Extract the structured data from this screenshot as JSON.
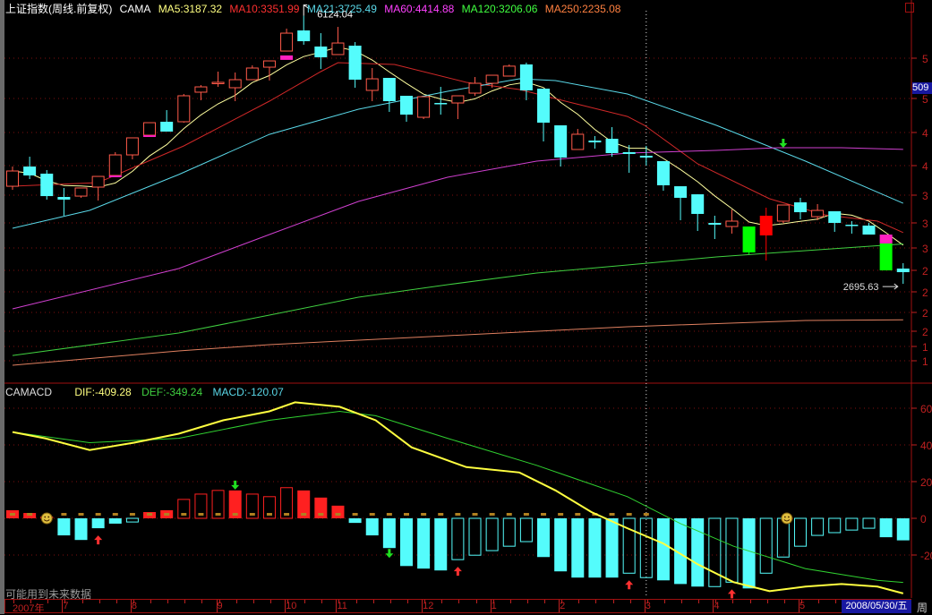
{
  "header": {
    "title": "上证指数(周线.前复权)",
    "indicator": "CAMA",
    "ma": [
      {
        "label": "MA5:3187.32",
        "color": "#ffff80"
      },
      {
        "label": "MA10:3351.99",
        "color": "#ff3030"
      },
      {
        "label": "MA21:3725.49",
        "color": "#5ad8e8"
      },
      {
        "label": "MA60:4414.88",
        "color": "#ff40ff"
      },
      {
        "label": "MA120:3206.06",
        "color": "#40ff40"
      },
      {
        "label": "MA250:2235.08",
        "color": "#ff8040"
      }
    ]
  },
  "macd_header": {
    "name": "CAMACD",
    "dif": "DIF:-409.28",
    "def": "DEF:-349.24",
    "macd": "MACD:-120.07"
  },
  "warning": "可能用到未来数据",
  "cursor_price": "509",
  "date_label": "2008/05/30/五",
  "period_label": "周",
  "colors": {
    "up": "#ff5a4a",
    "down": "#54fcfc",
    "axis": "#c02020",
    "grid": "#801010",
    "dif": "#ffff40",
    "def": "#30d030"
  },
  "chart_data": [
    {
      "type": "candlestick",
      "title": "上证指数(周线.前复权)",
      "scale": "price",
      "ylim": [
        1460,
        6326
      ],
      "annotations": [
        {
          "label": "6124.04",
          "week": 17
        },
        {
          "label": "2695.63",
          "week": 52
        }
      ],
      "right_axis_labels": [
        "5",
        "5",
        "4",
        "4",
        "3",
        "3",
        "3",
        "2",
        "2",
        "2",
        "2",
        "1",
        "1"
      ],
      "x_labels": [
        {
          "label": "2007年",
          "week": 0
        },
        {
          "label": "7",
          "week": 3
        },
        {
          "label": "8",
          "week": 7
        },
        {
          "label": "9",
          "week": 12
        },
        {
          "label": "10",
          "week": 16
        },
        {
          "label": "11",
          "week": 19
        },
        {
          "label": "12",
          "week": 24
        },
        {
          "label": "1",
          "week": 28
        },
        {
          "label": "2",
          "week": 32
        },
        {
          "label": "3",
          "week": 37
        },
        {
          "label": "4",
          "week": 41
        },
        {
          "label": "5",
          "week": 46
        }
      ],
      "cursor_week": 37,
      "candles": [
        {
          "o": 3944,
          "h": 4196,
          "l": 3899,
          "c": 4139
        },
        {
          "o": 4196,
          "h": 4322,
          "l": 4036,
          "c": 4082
        },
        {
          "o": 4105,
          "h": 4151,
          "l": 3773,
          "c": 3818
        },
        {
          "o": 3807,
          "h": 3922,
          "l": 3567,
          "c": 3773
        },
        {
          "o": 3818,
          "h": 3922,
          "l": 3796,
          "c": 3922
        },
        {
          "o": 3933,
          "h": 4070,
          "l": 3761,
          "c": 4070
        },
        {
          "o": 4082,
          "h": 4380,
          "l": 4082,
          "c": 4345
        },
        {
          "o": 4345,
          "h": 4563,
          "l": 4288,
          "c": 4563
        },
        {
          "o": 4597,
          "h": 4757,
          "l": 4597,
          "c": 4757
        },
        {
          "o": 4769,
          "h": 4918,
          "l": 4643,
          "c": 4643
        },
        {
          "o": 4769,
          "h": 5124,
          "l": 4757,
          "c": 5101
        },
        {
          "o": 5147,
          "h": 5238,
          "l": 5044,
          "c": 5215
        },
        {
          "o": 5261,
          "h": 5410,
          "l": 5215,
          "c": 5273
        },
        {
          "o": 5204,
          "h": 5399,
          "l": 5032,
          "c": 5307
        },
        {
          "o": 5307,
          "h": 5490,
          "l": 5307,
          "c": 5456
        },
        {
          "o": 5467,
          "h": 5547,
          "l": 5296,
          "c": 5547
        },
        {
          "o": 5673,
          "h": 5960,
          "l": 5673,
          "c": 5902
        },
        {
          "o": 5937,
          "h": 6124.04,
          "l": 5754,
          "c": 5799
        },
        {
          "o": 5731,
          "h": 5902,
          "l": 5444,
          "c": 5593
        },
        {
          "o": 5628,
          "h": 5982,
          "l": 5628,
          "c": 5776
        },
        {
          "o": 5742,
          "h": 5788,
          "l": 5204,
          "c": 5307
        },
        {
          "o": 5170,
          "h": 5456,
          "l": 5032,
          "c": 5318
        },
        {
          "o": 5330,
          "h": 5330,
          "l": 4895,
          "c": 5032
        },
        {
          "o": 5101,
          "h": 5101,
          "l": 4769,
          "c": 4860
        },
        {
          "o": 4826,
          "h": 5089,
          "l": 4803,
          "c": 5089
        },
        {
          "o": 5009,
          "h": 5215,
          "l": 4860,
          "c": 4998
        },
        {
          "o": 5009,
          "h": 5101,
          "l": 4803,
          "c": 5101
        },
        {
          "o": 5135,
          "h": 5341,
          "l": 5101,
          "c": 5261
        },
        {
          "o": 5261,
          "h": 5364,
          "l": 5204,
          "c": 5364
        },
        {
          "o": 5353,
          "h": 5502,
          "l": 5353,
          "c": 5480
        },
        {
          "o": 5502,
          "h": 5525,
          "l": 5044,
          "c": 5170
        },
        {
          "o": 5192,
          "h": 5192,
          "l": 4517,
          "c": 4757
        },
        {
          "o": 4723,
          "h": 4723,
          "l": 4196,
          "c": 4311
        },
        {
          "o": 4414,
          "h": 4677,
          "l": 4414,
          "c": 4609
        },
        {
          "o": 4528,
          "h": 4586,
          "l": 4425,
          "c": 4505
        },
        {
          "o": 4551,
          "h": 4700,
          "l": 4322,
          "c": 4368
        },
        {
          "o": 4380,
          "h": 4471,
          "l": 4116,
          "c": 4357
        },
        {
          "o": 4334,
          "h": 4460,
          "l": 4208,
          "c": 4311
        },
        {
          "o": 4265,
          "h": 4265,
          "l": 3887,
          "c": 3956
        },
        {
          "o": 3944,
          "h": 3944,
          "l": 3509,
          "c": 3796
        },
        {
          "o": 3841,
          "h": 3841,
          "l": 3372,
          "c": 3590
        },
        {
          "o": 3475,
          "h": 3567,
          "l": 3269,
          "c": 3452
        },
        {
          "o": 3429,
          "h": 3647,
          "l": 3338,
          "c": 3498
        },
        {
          "o": 3429,
          "h": 3429,
          "l": 3074,
          "c": 3097,
          "fill": "#00ff00"
        },
        {
          "o": 3315,
          "h": 3670,
          "l": 2994,
          "c": 3567,
          "fill": "#ff0000"
        },
        {
          "o": 3498,
          "h": 3704,
          "l": 3475,
          "c": 3704
        },
        {
          "o": 3738,
          "h": 3796,
          "l": 3521,
          "c": 3612
        },
        {
          "o": 3555,
          "h": 3716,
          "l": 3509,
          "c": 3635
        },
        {
          "o": 3624,
          "h": 3624,
          "l": 3361,
          "c": 3475
        },
        {
          "o": 3452,
          "h": 3498,
          "l": 3338,
          "c": 3441
        },
        {
          "o": 3441,
          "h": 3475,
          "l": 3326,
          "c": 3326
        },
        {
          "o": 3212,
          "h": 3326,
          "l": 2868,
          "c": 2868,
          "fill": "#00ff00"
        },
        {
          "o": 2891,
          "h": 2960,
          "l": 2695.63,
          "c": 2845
        }
      ],
      "magenta_marks": [
        {
          "week": 6,
          "top": 4082,
          "bottom": 4060
        },
        {
          "week": 8,
          "top": 4597,
          "bottom": 4580
        },
        {
          "week": 16,
          "top": 5617,
          "bottom": 5560
        },
        {
          "week": 51,
          "top": 3326,
          "bottom": 3212
        }
      ],
      "signal_arrows": [
        {
          "week": 45,
          "price": 4460,
          "dir": "down",
          "color": "#20e020"
        }
      ],
      "ma_lines": [
        {
          "name": "MA5",
          "period": 5,
          "color": "#ffff9f"
        },
        {
          "name": "MA10",
          "color": "#d02828",
          "points": [
            [
              0,
              3944
            ],
            [
              5,
              3990
            ],
            [
              10,
              4460
            ],
            [
              15,
              5032
            ],
            [
              18,
              5410
            ],
            [
              19,
              5525
            ],
            [
              22.3,
              5502
            ],
            [
              26.5,
              5273
            ],
            [
              29.6,
              5181
            ],
            [
              32.7,
              5009
            ],
            [
              35.9,
              4837
            ],
            [
              36.9,
              4723
            ],
            [
              40,
              4231
            ],
            [
              44.2,
              3784
            ],
            [
              47.4,
              3578
            ],
            [
              50.5,
              3498
            ],
            [
              52,
              3351.99
            ]
          ]
        },
        {
          "name": "MA21",
          "color": "#5ad8e8",
          "points": [
            [
              0,
              3406
            ],
            [
              4.5,
              3635
            ],
            [
              9.7,
              4093
            ],
            [
              15,
              4608
            ],
            [
              20.2,
              4929
            ],
            [
              25.4,
              5158
            ],
            [
              29.6,
              5318
            ],
            [
              31.7,
              5296
            ],
            [
              35.9,
              5124
            ],
            [
              41.1,
              4723
            ],
            [
              46.3,
              4265
            ],
            [
              52,
              3725.49
            ]
          ]
        },
        {
          "name": "MA60",
          "color": "#d040d0",
          "points": [
            [
              0,
              2376
            ],
            [
              9.7,
              2891
            ],
            [
              15,
              3326
            ],
            [
              20.2,
              3750
            ],
            [
              25.4,
              4059
            ],
            [
              30.6,
              4265
            ],
            [
              35.9,
              4368
            ],
            [
              41.1,
              4403
            ],
            [
              44.7,
              4437
            ],
            [
              48.4,
              4437
            ],
            [
              52,
              4414.88
            ]
          ]
        },
        {
          "name": "MA120",
          "color": "#40d040",
          "points": [
            [
              0,
              1780
            ],
            [
              9.7,
              2067
            ],
            [
              15,
              2296
            ],
            [
              20.2,
              2525
            ],
            [
              25.4,
              2685
            ],
            [
              30.6,
              2834
            ],
            [
              35.9,
              2937
            ],
            [
              41.1,
              3040
            ],
            [
              46.3,
              3120
            ],
            [
              52,
              3206.06
            ]
          ]
        },
        {
          "name": "MA250",
          "color": "#e08060",
          "points": [
            [
              0,
              1655
            ],
            [
              9.7,
              1838
            ],
            [
              15,
              1918
            ],
            [
              25.4,
              2032
            ],
            [
              35.9,
              2147
            ],
            [
              46.3,
              2227
            ],
            [
              52,
              2235.08
            ]
          ]
        }
      ]
    },
    {
      "type": "macd",
      "title": "CAMACD",
      "ylim": [
        -440,
        700
      ],
      "axis_ticks": [
        {
          "label": "60",
          "value": 600
        },
        {
          "label": "40",
          "value": 400
        },
        {
          "label": "20",
          "value": 200
        },
        {
          "label": "0",
          "value": 0
        },
        {
          "label": "-20",
          "value": -200
        }
      ],
      "dif": [
        [
          0,
          470
        ],
        [
          1.9,
          436
        ],
        [
          4.5,
          372
        ],
        [
          7.1,
          412
        ],
        [
          9.7,
          461
        ],
        [
          12.3,
          534
        ],
        [
          15,
          583
        ],
        [
          16.5,
          632
        ],
        [
          19.1,
          608
        ],
        [
          21.2,
          534
        ],
        [
          23.3,
          387
        ],
        [
          26.5,
          279
        ],
        [
          29.6,
          250
        ],
        [
          31.7,
          152
        ],
        [
          33.8,
          34
        ],
        [
          35.9,
          -54
        ],
        [
          38,
          -137
        ],
        [
          40,
          -250
        ],
        [
          42.1,
          -348
        ],
        [
          44.2,
          -397
        ],
        [
          46.3,
          -372
        ],
        [
          48.4,
          -358
        ],
        [
          50.5,
          -372
        ],
        [
          52,
          -409.28
        ]
      ],
      "def": [
        [
          0,
          470
        ],
        [
          4.5,
          412
        ],
        [
          9.7,
          436
        ],
        [
          15,
          534
        ],
        [
          19.1,
          583
        ],
        [
          21.2,
          559
        ],
        [
          25.4,
          436
        ],
        [
          30.6,
          289
        ],
        [
          35.9,
          118
        ],
        [
          39,
          -29
        ],
        [
          42.1,
          -152
        ],
        [
          46.3,
          -274
        ],
        [
          50.5,
          -338
        ],
        [
          52,
          -349.24
        ]
      ],
      "bars": [
        44,
        29,
        10,
        -93,
        -118,
        -54,
        -29,
        -20,
        34,
        44,
        103,
        132,
        152,
        152,
        132,
        118,
        167,
        152,
        113,
        69,
        -25,
        -93,
        -162,
        -260,
        -274,
        -284,
        -225,
        -201,
        -176,
        -152,
        -127,
        -211,
        -289,
        -323,
        -323,
        -323,
        -299,
        -323,
        -338,
        -358,
        -372,
        -372,
        -348,
        -382,
        -299,
        -211,
        -152,
        -93,
        -78,
        -64,
        -54,
        -103,
        -120.07
      ],
      "bar_style": [
        "fill",
        "fill",
        "fill",
        "fill",
        "fill",
        "fill",
        "fill",
        "hollow",
        "fill",
        "fill",
        "hollow",
        "hollow",
        "hollow",
        "fill",
        "hollow",
        "hollow",
        "hollow",
        "fill",
        "fill",
        "fill",
        "fill",
        "fill",
        "fill",
        "fill",
        "fill",
        "fill",
        "hollow",
        "hollow",
        "hollow",
        "hollow",
        "hollow",
        "fill",
        "fill",
        "fill",
        "fill",
        "fill",
        "hollow",
        "hollow",
        "fill",
        "fill",
        "fill",
        "hollow",
        "hollow",
        "fill",
        "hollow",
        "hollow",
        "hollow",
        "hollow",
        "hollow",
        "hollow",
        "hollow",
        "fill",
        "fill"
      ],
      "arrows": [
        {
          "week": 5,
          "dir": "up",
          "color": "#ff3030"
        },
        {
          "week": 13,
          "dir": "down",
          "color": "#20e020"
        },
        {
          "week": 22,
          "dir": "down",
          "color": "#20e020"
        },
        {
          "week": 26,
          "dir": "up",
          "color": "#ff3030"
        },
        {
          "week": 36,
          "dir": "up",
          "color": "#ff3030"
        },
        {
          "week": 42,
          "dir": "up",
          "color": "#ff3030"
        }
      ],
      "smileys": [
        2,
        45
      ]
    }
  ]
}
